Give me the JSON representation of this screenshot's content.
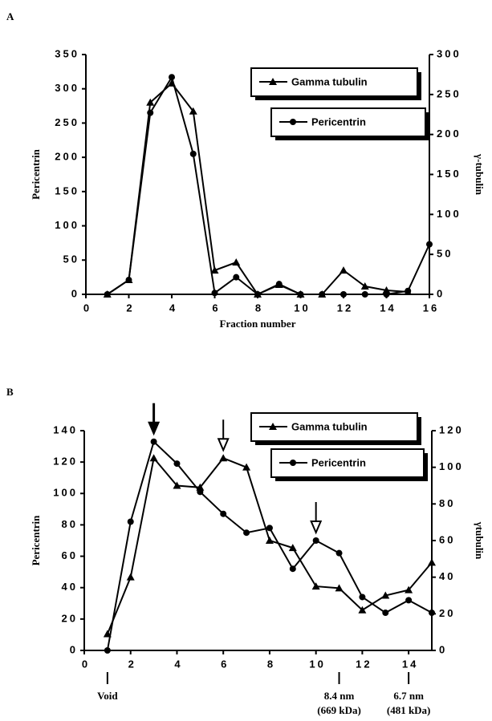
{
  "chart_data": [
    {
      "type": "line",
      "panel": "A",
      "x_label": "Fraction number",
      "y_label": "Pericentrin",
      "y2_label": "γ-tubulin",
      "x": [
        1,
        2,
        3,
        4,
        5,
        6,
        7,
        8,
        9,
        10,
        11,
        12,
        13,
        14,
        15,
        16
      ],
      "xlim": [
        0,
        16
      ],
      "xticks": [
        0,
        2,
        4,
        6,
        8,
        10,
        12,
        14,
        16
      ],
      "ylim": [
        0,
        350
      ],
      "yticks": [
        0,
        50,
        100,
        150,
        200,
        250,
        300,
        350
      ],
      "y2lim": [
        0,
        300
      ],
      "y2ticks": [
        0,
        50,
        100,
        150,
        200,
        250,
        300
      ],
      "series": [
        {
          "name": "Gamma tubulin",
          "color": "#000000",
          "marker": "triangle",
          "axis": "y2",
          "values": [
            0,
            18,
            240,
            264,
            229,
            30,
            40,
            0,
            12,
            0,
            0,
            30,
            10,
            5,
            3,
            null
          ]
        },
        {
          "name": "Pericentrin",
          "color": "#000000",
          "marker": "circle",
          "values": [
            0,
            21,
            265,
            317,
            205,
            2,
            25,
            0,
            15,
            0,
            0,
            0,
            0,
            0,
            5,
            73
          ]
        }
      ]
    },
    {
      "type": "line",
      "panel": "B",
      "y_label": "Pericentrin",
      "y2_label": "γtubulin",
      "x": [
        1,
        2,
        3,
        4,
        5,
        6,
        7,
        8,
        9,
        10,
        11,
        12,
        13,
        14,
        15
      ],
      "xlim": [
        0,
        15
      ],
      "xticks": [
        0,
        2,
        4,
        6,
        8,
        10,
        12,
        14
      ],
      "ylim": [
        0,
        140
      ],
      "yticks": [
        0,
        20,
        40,
        60,
        80,
        100,
        120,
        140
      ],
      "y2lim": [
        0,
        120
      ],
      "y2ticks": [
        0,
        20,
        40,
        60,
        80,
        100,
        120
      ],
      "series": [
        {
          "name": "Gamma tubulin",
          "color": "#000000",
          "marker": "triangle",
          "axis": "y2",
          "values": [
            9,
            40,
            105,
            90,
            89,
            105,
            100,
            60,
            56,
            35,
            34,
            22,
            30,
            33,
            48
          ]
        },
        {
          "name": "Pericentrin",
          "color": "#000000",
          "marker": "circle",
          "values": [
            0,
            82,
            133,
            119,
            101,
            87,
            75,
            78,
            52,
            70,
            62,
            34,
            24,
            32,
            24
          ]
        }
      ],
      "arrows": [
        {
          "x": 3,
          "style": "filled"
        },
        {
          "x": 6,
          "style": "open"
        },
        {
          "x": 10,
          "style": "open"
        }
      ],
      "annotations": [
        {
          "x": 1,
          "lines": [
            "Void"
          ]
        },
        {
          "x": 11,
          "lines": [
            "8.4 nm",
            "(669 kDa)"
          ]
        },
        {
          "x": 14,
          "lines": [
            "6.7 nm",
            "(481 kDa)"
          ]
        }
      ]
    }
  ]
}
